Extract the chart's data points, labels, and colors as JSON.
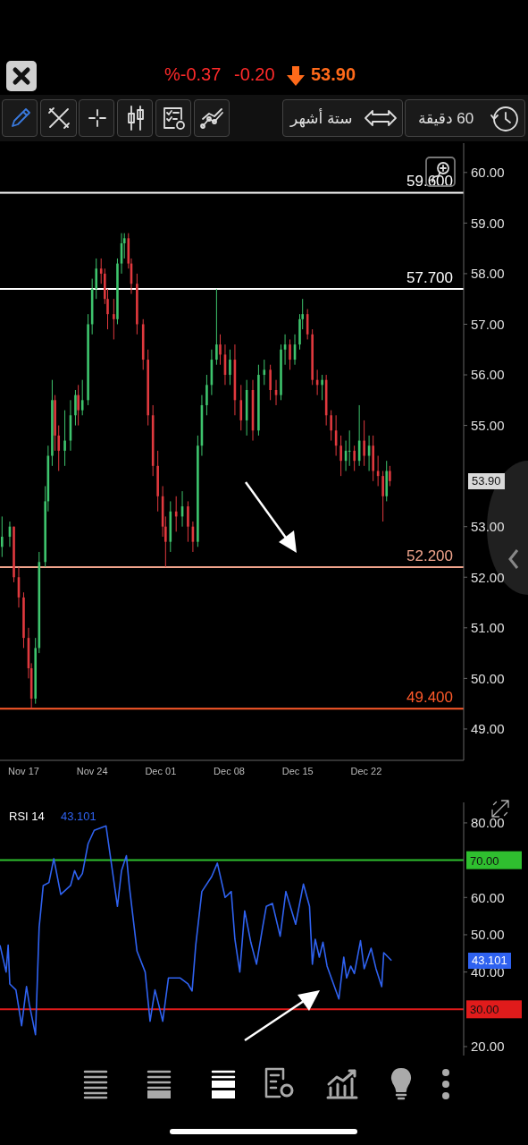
{
  "chart_data": [
    {
      "type": "candlestick",
      "colors": [
        "#3ec46d",
        "#3ec46d",
        "#e0393e",
        "#e0393e",
        "#e0393e",
        "#e0393e",
        "#e0393e",
        "#3ec46d",
        "#3ec46d",
        "#3ec46d",
        "#3ec46d",
        "#3ec46d",
        "#e0393e",
        "#e0393e",
        "#3ec46d",
        "#3ec46d",
        "#3ec46d",
        "#e0393e",
        "#3ec46d",
        "#3ec46d",
        "#3ec46d",
        "#3ec46d",
        "#e0393e",
        "#e0393e",
        "#e0393e",
        "#e0393e",
        "#3ec46d",
        "#3ec46d",
        "#3ec46d",
        "#e0393e",
        "#e0393e",
        "#e0393e",
        "#e0393e",
        "#e0393e",
        "#e0393e",
        "#e0393e",
        "#e0393e",
        "#e0393e",
        "#3ec46d",
        "#e0393e",
        "#3ec46d",
        "#e0393e",
        "#e0393e",
        "#3ec46d",
        "#3ec46d",
        "#3ec46d",
        "#3ec46d",
        "#3ec46d",
        "#e0393e",
        "#e0393e",
        "#3ec46d",
        "#e0393e",
        "#e0393e",
        "#3ec46d",
        "#e0393e",
        "#3ec46d",
        "#3ec46d",
        "#e0393e",
        "#e0393e",
        "#3ec46d",
        "#3ec46d",
        "#e0393e",
        "#3ec46d",
        "#3ec46d",
        "#3ec46d",
        "#e0393e",
        "#e0393e",
        "#e0393e",
        "#3ec46d",
        "#e0393e",
        "#e0393e",
        "#e0393e",
        "#e0393e",
        "#3ec46d",
        "#3ec46d",
        "#e0393e",
        "#3ec46d",
        "#e0393e",
        "#3ec46d",
        "#e0393e",
        "#e0393e",
        "#e0393e",
        "#3ec46d",
        "#e0393e"
      ],
      "x": [
        "--11-14T19:00",
        "--11-15T14:00",
        "--11-16T00:00",
        "--11-16T12:00",
        "--11-17T00:00",
        "--11-17T12:00",
        "--11-17T19:00",
        "--11-18T05:00",
        "--11-18T14:00",
        "--11-19T05:00",
        "--11-19T12:00",
        "--11-19T22:00",
        "--11-20T05:00",
        "--11-20T14:00",
        "--11-21T05:00",
        "--11-21T19:00",
        "--11-22T07:00",
        "--11-22T14:00",
        "--11-23T00:00",
        "--11-23T14:00",
        "--11-24T00:00",
        "--11-24T10:00",
        "--11-24T22:00",
        "--11-25T07:00",
        "--11-25T14:00",
        "--11-26T05:00",
        "--11-26T14:00",
        "--11-27T00:00",
        "--11-27T07:00",
        "--11-27T17:00",
        "--11-28T00:00",
        "--11-28T14:00",
        "--11-29T05:00",
        "--11-29T17:00",
        "--11-30T05:00",
        "--11-30T17:00",
        "--12-01T05:00",
        "--12-01T12:00",
        "--12-02T00:00",
        "--12-02T14:00",
        "--12-03T05:00",
        "--12-03T19:00",
        "--12-04T07:00",
        "--12-04T19:00",
        "--12-05T05:00",
        "--12-05T17:00",
        "--12-06T05:00",
        "--12-06T17:00",
        "--12-07T02:00",
        "--12-07T14:00",
        "--12-08T02:00",
        "--12-08T14:00",
        "--12-09T05:00",
        "--12-09T19:00",
        "--12-10T10:00",
        "--12-11T00:00",
        "--12-11T14:00",
        "--12-12T05:00",
        "--12-12T19:00",
        "--12-13T07:00",
        "--12-13T17:00",
        "--12-14T05:00",
        "--12-14T17:00",
        "--12-15T05:00",
        "--12-15T12:00",
        "--12-16T00:00",
        "--12-16T12:00",
        "--12-17T00:00",
        "--12-17T12:00",
        "--12-17T22:00",
        "--12-18T10:00",
        "--12-18T22:00",
        "--12-19T10:00",
        "--12-19T22:00",
        "--12-20T07:00",
        "--12-20T19:00",
        "--12-21T07:00",
        "--12-21T19:00",
        "--12-22T07:00",
        "--12-22T17:00",
        "--12-23T05:00",
        "--12-23T17:00",
        "--12-24T02:00",
        "--12-24T10:00"
      ],
      "ohlc": [
        [
          52.6,
          53.2,
          52.4,
          52.8
        ],
        [
          52.8,
          53.1,
          52.6,
          53.0
        ],
        [
          53.0,
          53.0,
          51.9,
          52.0
        ],
        [
          52.0,
          52.2,
          51.4,
          51.6
        ],
        [
          51.6,
          51.7,
          50.6,
          50.8
        ],
        [
          50.8,
          51.0,
          50.0,
          50.2
        ],
        [
          50.2,
          50.3,
          49.4,
          49.6
        ],
        [
          49.6,
          50.8,
          49.5,
          50.6
        ],
        [
          50.6,
          52.5,
          50.5,
          52.3
        ],
        [
          52.3,
          53.8,
          52.2,
          53.5
        ],
        [
          53.5,
          54.6,
          53.3,
          54.4
        ],
        [
          54.4,
          55.9,
          54.2,
          55.5
        ],
        [
          55.5,
          55.6,
          54.5,
          54.8
        ],
        [
          54.8,
          55.0,
          54.1,
          54.5
        ],
        [
          54.5,
          55.3,
          54.2,
          54.7
        ],
        [
          54.7,
          55.5,
          54.5,
          55.2
        ],
        [
          55.2,
          55.7,
          55.0,
          55.6
        ],
        [
          55.6,
          55.8,
          55.0,
          55.3
        ],
        [
          55.3,
          55.9,
          55.2,
          55.5
        ],
        [
          55.5,
          57.2,
          55.4,
          57.0
        ],
        [
          57.0,
          57.9,
          56.8,
          57.7
        ],
        [
          57.7,
          58.3,
          57.5,
          58.1
        ],
        [
          58.1,
          58.3,
          57.8,
          58.0
        ],
        [
          58.0,
          58.1,
          57.4,
          57.5
        ],
        [
          57.5,
          57.7,
          56.9,
          57.2
        ],
        [
          57.2,
          57.5,
          56.7,
          57.1
        ],
        [
          57.1,
          58.3,
          57.0,
          58.2
        ],
        [
          58.2,
          58.8,
          58.0,
          58.6
        ],
        [
          58.6,
          58.8,
          58.3,
          58.7
        ],
        [
          58.7,
          58.8,
          58.1,
          58.2
        ],
        [
          58.2,
          58.3,
          57.6,
          57.8
        ],
        [
          57.8,
          58.0,
          56.8,
          57.0
        ],
        [
          57.0,
          57.1,
          56.1,
          56.3
        ],
        [
          56.3,
          56.5,
          55.0,
          55.2
        ],
        [
          55.2,
          55.4,
          54.0,
          54.2
        ],
        [
          54.2,
          54.5,
          53.3,
          53.6
        ],
        [
          53.6,
          53.8,
          52.8,
          53.0
        ],
        [
          53.0,
          53.2,
          52.2,
          52.7
        ],
        [
          52.7,
          53.5,
          52.5,
          53.3
        ],
        [
          53.3,
          53.6,
          52.9,
          53.2
        ],
        [
          53.2,
          53.7,
          53.0,
          53.4
        ],
        [
          53.4,
          53.5,
          52.7,
          53.0
        ],
        [
          53.0,
          53.1,
          52.5,
          52.7
        ],
        [
          52.7,
          54.8,
          52.6,
          54.6
        ],
        [
          54.6,
          55.6,
          54.4,
          55.4
        ],
        [
          55.4,
          56.0,
          55.2,
          55.8
        ],
        [
          55.8,
          56.5,
          55.6,
          56.3
        ],
        [
          56.3,
          57.7,
          56.2,
          56.6
        ],
        [
          56.6,
          56.8,
          56.2,
          56.4
        ],
        [
          56.4,
          56.6,
          55.8,
          56.0
        ],
        [
          56.0,
          56.5,
          55.8,
          56.3
        ],
        [
          56.3,
          56.6,
          55.2,
          55.5
        ],
        [
          55.5,
          55.8,
          54.9,
          55.1
        ],
        [
          55.1,
          55.9,
          54.8,
          55.7
        ],
        [
          55.7,
          55.9,
          54.7,
          54.9
        ],
        [
          54.9,
          56.2,
          54.8,
          56.0
        ],
        [
          56.0,
          56.3,
          55.8,
          56.1
        ],
        [
          56.1,
          56.2,
          55.5,
          55.7
        ],
        [
          55.7,
          55.9,
          55.4,
          55.6
        ],
        [
          55.6,
          56.6,
          55.5,
          56.5
        ],
        [
          56.5,
          56.8,
          56.2,
          56.6
        ],
        [
          56.6,
          56.7,
          56.1,
          56.3
        ],
        [
          56.3,
          56.8,
          56.2,
          56.6
        ],
        [
          56.6,
          57.2,
          56.5,
          57.1
        ],
        [
          57.1,
          57.5,
          56.9,
          57.2
        ],
        [
          57.2,
          57.3,
          56.7,
          56.8
        ],
        [
          56.8,
          56.9,
          55.8,
          55.9
        ],
        [
          55.9,
          56.1,
          55.6,
          55.8
        ],
        [
          55.8,
          56.0,
          55.5,
          55.9
        ],
        [
          55.9,
          56.0,
          55.0,
          55.2
        ],
        [
          55.2,
          55.3,
          54.7,
          54.9
        ],
        [
          54.9,
          55.2,
          54.4,
          54.6
        ],
        [
          54.6,
          54.8,
          54.0,
          54.3
        ],
        [
          54.3,
          54.7,
          54.1,
          54.5
        ],
        [
          54.5,
          54.9,
          54.2,
          54.5
        ],
        [
          54.5,
          54.6,
          54.1,
          54.3
        ],
        [
          54.3,
          55.4,
          54.2,
          54.7
        ],
        [
          54.7,
          55.1,
          54.2,
          54.4
        ],
        [
          54.4,
          54.8,
          54.1,
          54.6
        ],
        [
          54.6,
          54.8,
          53.9,
          54.1
        ],
        [
          54.1,
          54.4,
          53.8,
          54.0
        ],
        [
          54.0,
          54.1,
          53.1,
          53.6
        ],
        [
          53.6,
          54.3,
          53.5,
          54.1
        ],
        [
          54.1,
          54.2,
          53.8,
          53.9
        ]
      ],
      "xlim": [
        "--11-14T14:00",
        "--12-31T23:00"
      ],
      "xticks": [
        {
          "value": "--11-17",
          "label": "Nov 17"
        },
        {
          "value": "--11-24",
          "label": "Nov 24"
        },
        {
          "value": "--12-01",
          "label": "Dec 01"
        },
        {
          "value": "--12-08",
          "label": "Dec 08"
        },
        {
          "value": "--12-15",
          "label": "Dec 15"
        },
        {
          "value": "--12-22",
          "label": "Dec 22"
        }
      ],
      "ylim": [
        48.38,
        60.58
      ],
      "yticks": [
        {
          "value": 49,
          "label": "49.00"
        },
        {
          "value": 50,
          "label": "50.00"
        },
        {
          "value": 51,
          "label": "51.00"
        },
        {
          "value": 52,
          "label": "52.00"
        },
        {
          "value": 53,
          "label": "53.00"
        },
        {
          "value": 55,
          "label": "55.00"
        },
        {
          "value": 56,
          "label": "56.00"
        },
        {
          "value": 57,
          "label": "57.00"
        },
        {
          "value": 58,
          "label": "58.00"
        },
        {
          "value": 59,
          "label": "59.00"
        },
        {
          "value": 60,
          "label": "60.00"
        }
      ],
      "ref_lines": [
        {
          "axis": "y",
          "value": 59.6,
          "label": "59.600",
          "color": "#ffffff"
        },
        {
          "axis": "y",
          "value": 57.7,
          "label": "57.700",
          "color": "#ffffff"
        },
        {
          "axis": "y",
          "value": 52.2,
          "label": "52.200",
          "color": "#f0a48c"
        },
        {
          "axis": "y",
          "value": 49.4,
          "label": "49.400",
          "color": "#ff5a2a"
        }
      ],
      "annotations": [
        "%-0.37",
        "-0.20",
        "53.90",
        "ستة أشهر",
        "60 دقيقة",
        "53.90"
      ]
    },
    {
      "type": "line",
      "title": "RSI 14",
      "x": [
        "--11-14T14:00",
        "--11-15T05:00",
        "--11-15T10:00",
        "--11-15T14:00",
        "--11-16T05:00",
        "--11-16T19:00",
        "--11-17T07:00",
        "--11-17T14:00",
        "--11-18T05:00",
        "--11-18T14:00",
        "--11-19T00:00",
        "--11-19T14:00",
        "--11-20T02:00",
        "--11-20T19:00",
        "--11-21T19:00",
        "--11-22T05:00",
        "--11-22T14:00",
        "--11-23T00:00",
        "--11-23T14:00",
        "--11-24T05:00",
        "--11-25T10:00",
        "--11-26T14:00",
        "--11-27T00:00",
        "--11-27T12:00",
        "--11-27T19:00",
        "--11-28T14:00",
        "--11-29T10:00",
        "--11-29T22:00",
        "--11-30T10:00",
        "--11-30T19:00",
        "--12-01T05:00",
        "--12-01T19:00",
        "--12-03T00:00",
        "--12-03T19:00",
        "--12-04T05:00",
        "--12-04T14:00",
        "--12-05T05:00",
        "--12-06T05:00",
        "--12-06T19:00",
        "--12-07T14:00",
        "--12-08T05:00",
        "--12-08T14:00",
        "--12-09T02:00",
        "--12-09T14:00",
        "--12-10T05:00",
        "--12-10T19:00",
        "--12-11T10:00",
        "--12-11T19:00",
        "--12-12T10:00",
        "--12-13T05:00",
        "--12-13T19:00",
        "--12-14T19:00",
        "--12-15T14:00",
        "--12-16T05:00",
        "--12-16T12:00",
        "--12-16T19:00",
        "--12-17T05:00",
        "--12-17T14:00",
        "--12-18T00:00",
        "--12-19T05:00",
        "--12-19T17:00",
        "--12-20T00:00",
        "--12-20T10:00",
        "--12-20T19:00",
        "--12-21T10:00",
        "--12-21T19:00",
        "--12-22T12:00",
        "--12-23T00:00",
        "--12-23T14:00",
        "--12-23T19:00",
        "--12-24T14:00"
      ],
      "series": [
        {
          "color": "#2f62f0",
          "values": [
            47.2,
            40.0,
            47.2,
            36.8,
            35.2,
            25.6,
            36.1,
            31.3,
            23.2,
            52.0,
            63.2,
            64.0,
            70.4,
            60.8,
            63.2,
            67.2,
            64.8,
            66.4,
            74.4,
            78.0,
            79.2,
            57.6,
            67.2,
            71.2,
            63.2,
            45.6,
            40.0,
            26.8,
            35.2,
            31.3,
            26.8,
            38.4,
            38.4,
            36.8,
            34.9,
            47.2,
            61.6,
            65.6,
            69.2,
            60.0,
            61.6,
            48.8,
            40.0,
            56.4,
            48.0,
            42.1,
            52.0,
            57.6,
            58.4,
            49.6,
            61.6,
            52.8,
            63.6,
            57.6,
            42.1,
            48.8,
            44.0,
            48.0,
            41.6,
            32.8,
            44.0,
            38.4,
            41.6,
            39.6,
            48.4,
            40.9,
            46.4,
            40.9,
            36.1,
            45.2,
            43.101
          ]
        }
      ],
      "xlim": [
        "--11-14T14:00",
        "--12-31T23:00"
      ],
      "ylim": [
        17.6,
        85.5
      ],
      "yticks": [
        {
          "value": 20,
          "label": "20.00"
        },
        {
          "value": 40,
          "label": "40.00"
        },
        {
          "value": 50,
          "label": "50.00"
        },
        {
          "value": 60,
          "label": "60.00"
        },
        {
          "value": 80,
          "label": "80.00"
        }
      ],
      "tick_labels": "y",
      "ref_lines": [
        {
          "axis": "y",
          "value": 70,
          "label": "70.00",
          "color": "#2fbf2f"
        },
        {
          "axis": "y",
          "value": 30,
          "label": "30.00",
          "color": "#e01b1b"
        }
      ],
      "annotations": [
        "43.101",
        "43.101"
      ]
    }
  ]
}
